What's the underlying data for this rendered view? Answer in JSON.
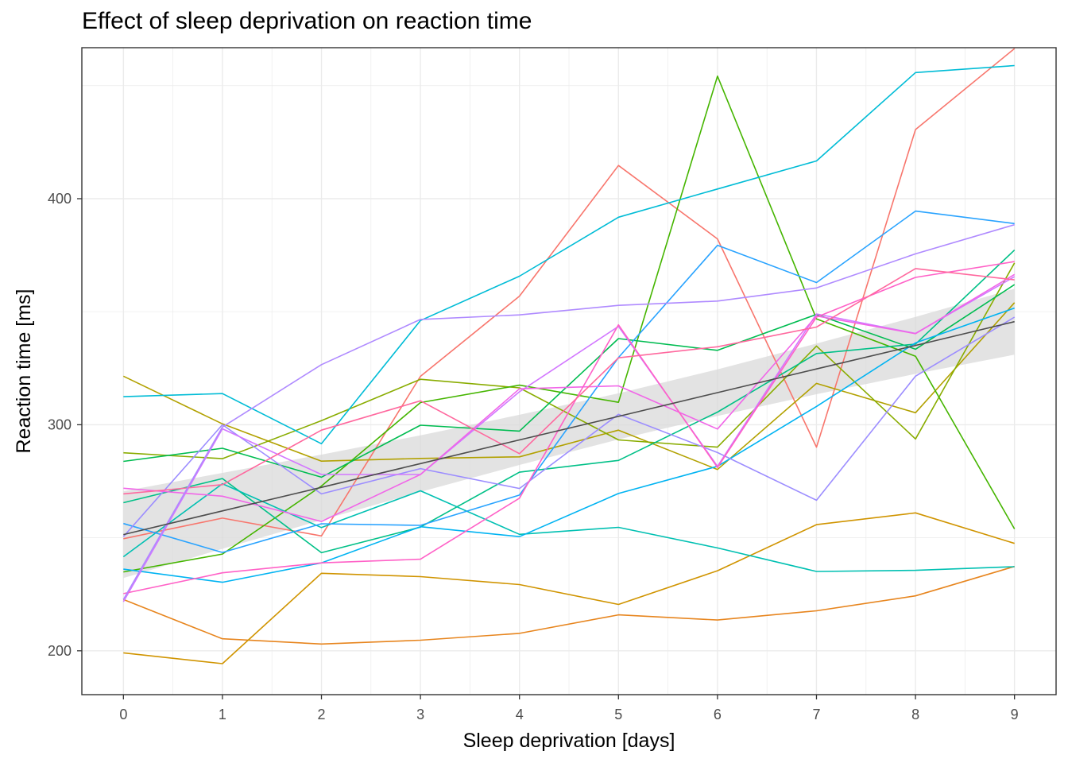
{
  "chart_data": {
    "type": "line",
    "title": "Effect of sleep deprivation on reaction time",
    "xlabel": "Sleep deprivation [days]",
    "ylabel": "Reaction time [ms]",
    "x": [
      0,
      1,
      2,
      3,
      4,
      5,
      6,
      7,
      8,
      9
    ],
    "xticks": [
      "0",
      "1",
      "2",
      "3",
      "4",
      "5",
      "6",
      "7",
      "8",
      "9"
    ],
    "yticks": [
      "200",
      "300",
      "400"
    ],
    "ytick_values": [
      200,
      300,
      400
    ],
    "xlim": [
      -0.42,
      9.42
    ],
    "ylim": [
      180.6,
      466.8
    ],
    "grid": true,
    "legend": "none",
    "series": [
      {
        "color": "#F8766D",
        "values": [
          249.6,
          258.7,
          250.8,
          321.4,
          356.9,
          414.7,
          382.2,
          290.1,
          430.6,
          466.4
        ]
      },
      {
        "color": "#E7851E",
        "values": [
          222.7,
          205.3,
          203.0,
          204.7,
          207.7,
          215.9,
          213.6,
          217.7,
          224.3,
          237.3
        ]
      },
      {
        "color": "#D09400",
        "values": [
          199.1,
          194.3,
          234.3,
          232.8,
          229.3,
          220.5,
          235.4,
          255.8,
          261.0,
          247.5
        ]
      },
      {
        "color": "#B2A100",
        "values": [
          321.5,
          300.4,
          283.9,
          285.1,
          285.8,
          297.6,
          280.2,
          318.3,
          305.3,
          354.0
        ]
      },
      {
        "color": "#89AC00",
        "values": [
          287.6,
          285.0,
          301.8,
          320.1,
          316.3,
          293.3,
          290.1,
          334.8,
          293.7,
          371.6
        ]
      },
      {
        "color": "#45B500",
        "values": [
          234.9,
          242.8,
          272.9,
          309.8,
          317.5,
          309.9,
          454.2,
          346.8,
          330.3,
          253.9
        ]
      },
      {
        "color": "#00BC51",
        "values": [
          283.8,
          289.6,
          276.8,
          299.8,
          297.2,
          338.1,
          332.9,
          348.8,
          333.4,
          362.0
        ]
      },
      {
        "color": "#00C087",
        "values": [
          265.5,
          276.2,
          243.4,
          254.7,
          279.0,
          284.2,
          305.6,
          331.5,
          335.7,
          377.3
        ]
      },
      {
        "color": "#00C0B2",
        "values": [
          241.6,
          273.9,
          254.5,
          270.8,
          251.5,
          254.6,
          245.5,
          235.1,
          235.6,
          237.2
        ]
      },
      {
        "color": "#00BCD6",
        "values": [
          312.4,
          313.8,
          291.6,
          346.1,
          365.7,
          391.8,
          404.3,
          416.7,
          455.8,
          458.9
        ]
      },
      {
        "color": "#00B3F2",
        "values": [
          236.1,
          230.3,
          238.9,
          254.9,
          250.5,
          269.6,
          281.6,
          308.1,
          336.2,
          351.6
        ]
      },
      {
        "color": "#29A3FF",
        "values": [
          256.3,
          243.5,
          256.2,
          255.5,
          268.9,
          329.7,
          379.4,
          362.9,
          394.5,
          389.0
        ]
      },
      {
        "color": "#9C8DFF",
        "values": [
          250.5,
          300.0,
          269.4,
          280.6,
          271.8,
          304.6,
          287.7,
          266.6,
          321.5,
          347.6
        ]
      },
      {
        "color": "#D277FF",
        "values": [
          221.7,
          298.2,
          278.0,
          278.0,
          314.6,
          343.5,
          281.6,
          349.0,
          340.4,
          365.5
        ]
      },
      {
        "color": "#F166E8",
        "values": [
          271.9,
          268.4,
          257.2,
          278.0,
          315.9,
          317.2,
          298.1,
          348.1,
          340.3,
          366.5
        ]
      },
      {
        "color": "#FF61C7",
        "values": [
          225.3,
          234.5,
          238.9,
          240.5,
          267.5,
          344.2,
          281.1,
          347.6,
          365.2,
          372.2
        ]
      },
      {
        "color": "#FF689E",
        "values": [
          269.4,
          273.5,
          297.6,
          310.6,
          287.2,
          329.6,
          334.5,
          343.2,
          369.1,
          364.1
        ]
      },
      {
        "color": "#AF8AFF",
        "values": [
          222.7,
          299.0,
          326.6,
          346.6,
          348.6,
          352.8,
          354.7,
          360.5,
          375.6,
          388.5
        ]
      }
    ],
    "trend": {
      "color": "#4d4d4d",
      "values": [
        251.4,
        261.9,
        272.3,
        282.8,
        293.3,
        303.7,
        314.2,
        324.7,
        335.1,
        345.6
      ],
      "ci_lower": [
        232.2,
        245.1,
        257.8,
        270.3,
        282.2,
        293.5,
        303.9,
        313.5,
        322.5,
        331.0
      ],
      "ci_upper": [
        270.6,
        278.7,
        286.8,
        295.3,
        304.4,
        313.9,
        324.5,
        335.9,
        347.7,
        360.2
      ],
      "ci_color": "#d9d9d9"
    }
  }
}
